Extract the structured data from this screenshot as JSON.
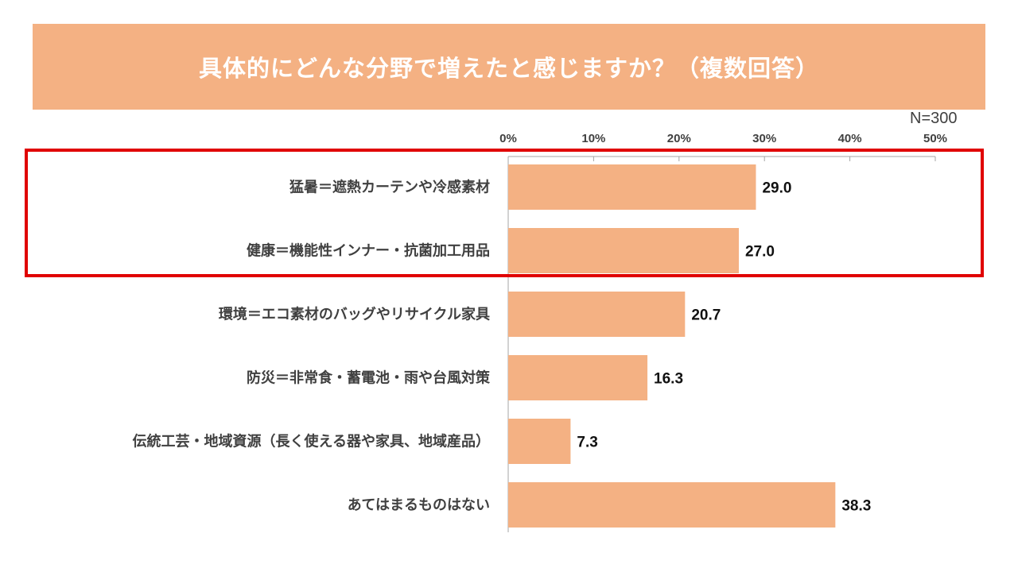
{
  "colors": {
    "banner": "#F4B183",
    "bar": "#F4B183",
    "highlight": "#E00000",
    "axis": "#A6A6A6"
  },
  "sample_size": "N=300",
  "chart_data": {
    "type": "bar",
    "orientation": "horizontal",
    "title": "具体的にどんな分野で増えたと感じますか？（複数回答）",
    "categories": [
      "猛暑＝遮熱カーテンや冷感素材",
      "健康＝機能性インナー・抗菌加工用品",
      "環境＝エコ素材のバッグやリサイクル家具",
      "防災＝非常食・蓄電池・雨や台風対策",
      "伝統工芸・地域資源（長く使える器や家具、地域産品）",
      "あてはまるものはない"
    ],
    "values": [
      29.0,
      27.0,
      20.7,
      16.3,
      7.3,
      38.3
    ],
    "value_labels": [
      "29.0",
      "27.0",
      "20.7",
      "16.3",
      "7.3",
      "38.3"
    ],
    "xlim": [
      0,
      50
    ],
    "ticks": [
      0,
      10,
      20,
      30,
      40,
      50
    ],
    "tick_labels": [
      "0%",
      "10%",
      "20%",
      "30%",
      "40%",
      "50%"
    ],
    "axis_position": "top",
    "grid": false,
    "highlighted_categories": [
      0,
      1
    ]
  }
}
